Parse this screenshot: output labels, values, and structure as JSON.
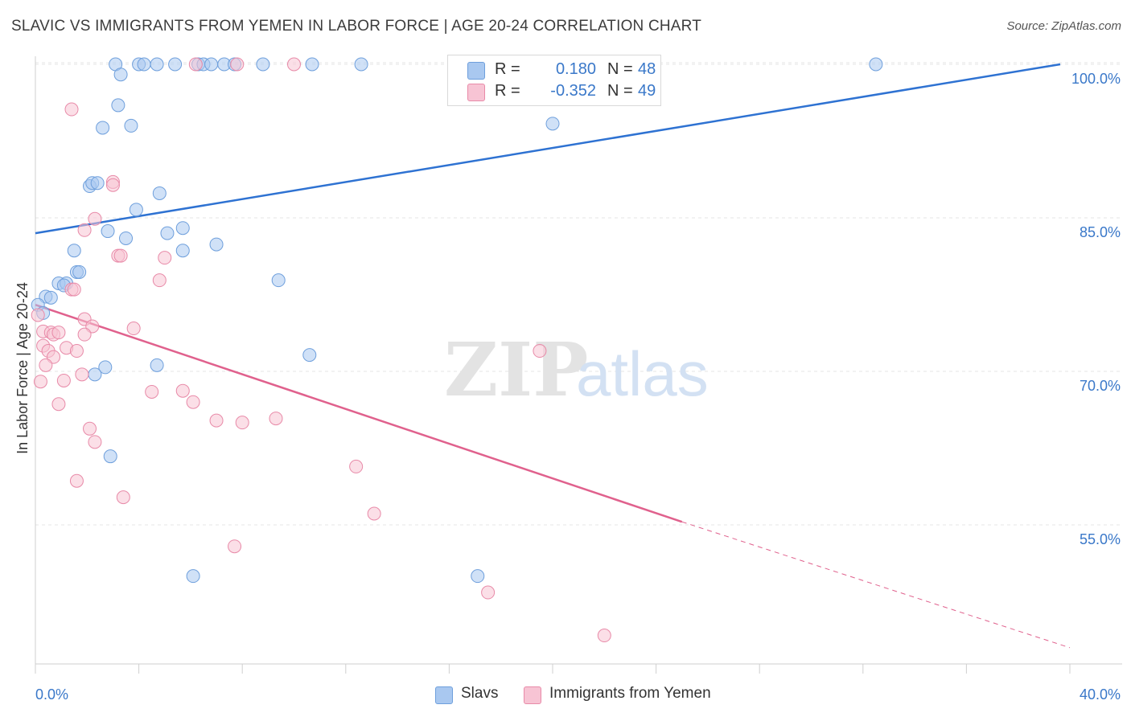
{
  "title": "SLAVIC VS IMMIGRANTS FROM YEMEN IN LABOR FORCE | AGE 20-24 CORRELATION CHART",
  "source": "Source: ZipAtlas.com",
  "watermark": {
    "zip": "ZIP",
    "atlas": "atlas"
  },
  "legend": {
    "rows": [
      {
        "r_label": "R =",
        "r_value": "0.180",
        "n_label": "N =",
        "n_value": "48",
        "color": "#a9c8f0",
        "border": "#6e9fdc"
      },
      {
        "r_label": "R =",
        "r_value": "-0.352",
        "n_label": "N =",
        "n_value": "49",
        "color": "#f7c4d4",
        "border": "#e88aa8"
      }
    ]
  },
  "colors": {
    "slavs_fill": "#a9c8f0",
    "slavs_line": "#2e72d2",
    "yemen_fill": "#f7c4d4",
    "yemen_line": "#e0618d",
    "axis_text": "#3a78c9"
  },
  "chart_data": {
    "type": "scatter",
    "xlabel": "",
    "ylabel": "In Labor Force | Age 20-24",
    "xlim": [
      0,
      40
    ],
    "ylim": [
      40,
      103
    ],
    "x_tick_labels": [
      "0.0%",
      "40.0%"
    ],
    "y_ticks": [
      55,
      70,
      85,
      100
    ],
    "y_tick_labels": [
      "55.0%",
      "70.0%",
      "85.0%",
      "100.0%"
    ],
    "grid": true,
    "series": [
      {
        "name": "Slavs",
        "points": [
          [
            3.1,
            100
          ],
          [
            4.0,
            100
          ],
          [
            4.2,
            100
          ],
          [
            4.7,
            100
          ],
          [
            5.4,
            100
          ],
          [
            6.3,
            100
          ],
          [
            6.5,
            100
          ],
          [
            6.8,
            100
          ],
          [
            7.3,
            100
          ],
          [
            7.7,
            100
          ],
          [
            8.8,
            100
          ],
          [
            10.7,
            100
          ],
          [
            12.6,
            100
          ],
          [
            32.5,
            100
          ],
          [
            3.3,
            99
          ],
          [
            3.2,
            96
          ],
          [
            2.6,
            93.8
          ],
          [
            3.7,
            94
          ],
          [
            20.0,
            94.2
          ],
          [
            2.1,
            88.1
          ],
          [
            2.2,
            88.4
          ],
          [
            2.4,
            88.4
          ],
          [
            4.8,
            87.4
          ],
          [
            3.9,
            85.8
          ],
          [
            2.8,
            83.7
          ],
          [
            5.1,
            83.5
          ],
          [
            5.7,
            84.0
          ],
          [
            3.5,
            83.0
          ],
          [
            7.0,
            82.4
          ],
          [
            1.5,
            81.8
          ],
          [
            5.7,
            81.8
          ],
          [
            1.6,
            79.7
          ],
          [
            1.7,
            79.7
          ],
          [
            9.4,
            78.9
          ],
          [
            0.9,
            78.6
          ],
          [
            1.2,
            78.6
          ],
          [
            1.1,
            78.4
          ],
          [
            0.4,
            77.3
          ],
          [
            0.6,
            77.2
          ],
          [
            0.1,
            76.5
          ],
          [
            0.3,
            75.7
          ],
          [
            10.6,
            71.6
          ],
          [
            2.7,
            70.4
          ],
          [
            4.7,
            70.6
          ],
          [
            2.3,
            69.7
          ],
          [
            2.9,
            61.7
          ],
          [
            6.1,
            50.0
          ],
          [
            17.1,
            50.0
          ]
        ]
      },
      {
        "name": "Immigrants from Yemen",
        "points": [
          [
            6.2,
            100
          ],
          [
            7.8,
            100
          ],
          [
            10.0,
            100
          ],
          [
            1.4,
            95.6
          ],
          [
            3.0,
            88.5
          ],
          [
            3.0,
            88.2
          ],
          [
            2.3,
            84.9
          ],
          [
            1.9,
            83.8
          ],
          [
            3.2,
            81.3
          ],
          [
            3.3,
            81.3
          ],
          [
            5.0,
            81.1
          ],
          [
            4.8,
            78.9
          ],
          [
            1.4,
            78.0
          ],
          [
            1.5,
            78.0
          ],
          [
            1.9,
            75.1
          ],
          [
            2.2,
            74.4
          ],
          [
            3.8,
            74.2
          ],
          [
            0.3,
            73.9
          ],
          [
            0.6,
            73.8
          ],
          [
            0.7,
            73.6
          ],
          [
            0.9,
            73.8
          ],
          [
            1.9,
            73.6
          ],
          [
            0.3,
            72.5
          ],
          [
            0.5,
            72.0
          ],
          [
            1.2,
            72.3
          ],
          [
            1.6,
            72.0
          ],
          [
            19.5,
            72.0
          ],
          [
            0.7,
            71.4
          ],
          [
            0.4,
            70.6
          ],
          [
            1.8,
            69.7
          ],
          [
            0.2,
            69.0
          ],
          [
            1.1,
            69.1
          ],
          [
            4.5,
            68.0
          ],
          [
            5.7,
            68.1
          ],
          [
            6.1,
            67.0
          ],
          [
            0.9,
            66.8
          ],
          [
            9.3,
            65.4
          ],
          [
            7.0,
            65.2
          ],
          [
            8.0,
            65.0
          ],
          [
            2.1,
            64.4
          ],
          [
            2.3,
            63.1
          ],
          [
            12.4,
            60.7
          ],
          [
            1.6,
            59.3
          ],
          [
            3.4,
            57.7
          ],
          [
            13.1,
            56.1
          ],
          [
            7.7,
            52.9
          ],
          [
            17.5,
            48.4
          ],
          [
            22.0,
            44.2
          ],
          [
            0.1,
            75.5
          ]
        ]
      }
    ],
    "trend_lines": [
      {
        "series": "Slavs",
        "from": [
          0,
          83.5
        ],
        "to": [
          40,
          100
        ]
      },
      {
        "series": "Immigrants from Yemen",
        "from": [
          0,
          76.5
        ],
        "to": [
          25,
          55.3
        ],
        "dashed_to": [
          40,
          43
        ]
      }
    ]
  },
  "bottom_legend": [
    {
      "label": "Slavs"
    },
    {
      "label": "Immigrants from Yemen"
    }
  ]
}
